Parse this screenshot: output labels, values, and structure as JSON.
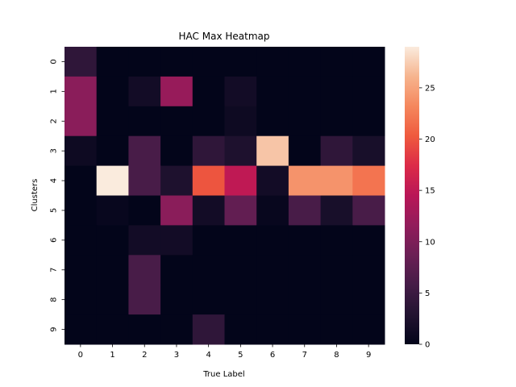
{
  "chart_data": {
    "type": "heatmap",
    "title": "HAC Max Heatmap",
    "xlabel": "True Label",
    "ylabel": "Clusters",
    "x_categories": [
      "0",
      "1",
      "2",
      "3",
      "4",
      "5",
      "6",
      "7",
      "8",
      "9"
    ],
    "y_categories": [
      "0",
      "1",
      "2",
      "3",
      "4",
      "5",
      "6",
      "7",
      "8",
      "9"
    ],
    "values": [
      [
        4,
        0,
        0,
        0,
        0,
        0,
        0,
        0,
        0,
        0
      ],
      [
        11,
        0,
        1.5,
        12,
        0,
        1.5,
        0,
        0,
        0,
        0
      ],
      [
        11,
        0,
        0,
        0,
        0,
        1,
        0,
        0,
        0,
        0
      ],
      [
        1,
        0,
        6,
        0,
        4,
        2.5,
        27,
        0,
        4,
        2
      ],
      [
        0,
        29,
        6,
        2.5,
        20,
        15,
        1.5,
        24,
        24,
        22
      ],
      [
        0,
        0.5,
        0,
        11,
        1.5,
        8,
        0.5,
        6,
        2,
        6
      ],
      [
        0,
        0,
        1.5,
        1.5,
        0,
        0,
        0,
        0,
        0,
        0
      ],
      [
        0,
        0,
        6,
        0,
        0,
        0,
        0,
        0,
        0,
        0
      ],
      [
        0,
        0,
        6,
        0,
        0,
        0,
        0,
        0,
        0,
        0
      ],
      [
        0,
        0,
        0,
        0,
        4,
        0,
        0,
        0,
        0,
        0
      ]
    ],
    "vmin": 0,
    "vmax": 29,
    "colorbar_ticks": [
      0,
      5,
      10,
      15,
      20,
      25
    ],
    "colormap": "rocket",
    "grid": false,
    "legend": "colorbar-right"
  }
}
